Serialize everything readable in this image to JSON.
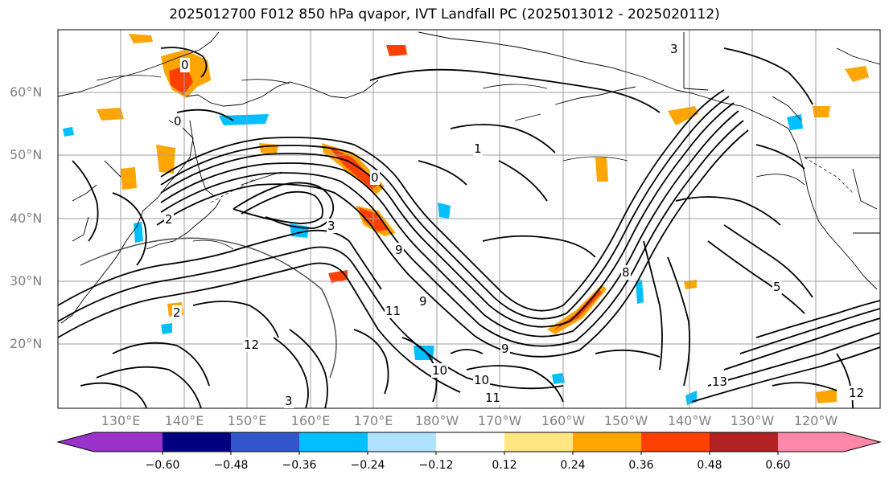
{
  "title": "2025012700 F012 850 hPa qvapor, IVT Landfall PC (2025013012 - 2025020112)",
  "map": {
    "lat_labels": [
      "60°N",
      "50°N",
      "40°N",
      "30°N",
      "20°N"
    ],
    "lon_labels": [
      "130°E",
      "140°E",
      "150°E",
      "160°E",
      "170°E",
      "180°W",
      "170°W",
      "160°W",
      "150°W",
      "140°W",
      "130°W",
      "120°W"
    ],
    "contour_labels": [
      "0",
      "0",
      "0",
      "2",
      "2",
      "3",
      "3",
      "5",
      "8",
      "9",
      "9",
      "10",
      "10",
      "11",
      "11",
      "12",
      "13",
      "9",
      "1",
      "12",
      "3"
    ],
    "colors": {
      "coastline": "#000000",
      "grid": "#9e9e9e",
      "contour": "#000000"
    }
  },
  "colorbar": {
    "ticks": [
      "−0.60",
      "−0.48",
      "−0.36",
      "−0.24",
      "−0.12",
      "0.12",
      "0.24",
      "0.36",
      "0.48",
      "0.60"
    ],
    "colors": [
      "#9933cc",
      "#000080",
      "#3355cc",
      "#00bfff",
      "#b0e2ff",
      "#ffffff",
      "#ffe680",
      "#ffa500",
      "#ff4000",
      "#b22222",
      "#ff88aa"
    ]
  },
  "anomaly_colors": {
    "light_orange": "#ffd700",
    "orange": "#ffa500",
    "red_orange": "#ff4000",
    "light_blue": "#00bfff"
  }
}
